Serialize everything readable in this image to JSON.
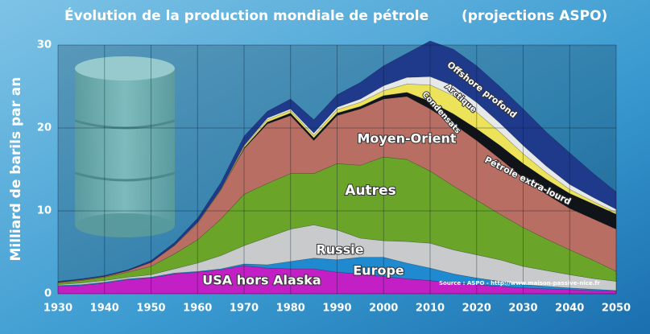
{
  "chart_data": {
    "type": "stacked-area",
    "title": "Évolution de la production mondiale de pétrole",
    "subtitle": "(projections ASPO)",
    "y_label": "Milliard de barils par an",
    "source": "Source : ASPO - http://www.maison-passive-nice.fr",
    "x": [
      1930,
      1935,
      1940,
      1945,
      1950,
      1955,
      1960,
      1965,
      1970,
      1975,
      1980,
      1985,
      1990,
      1995,
      2000,
      2005,
      2010,
      2015,
      2020,
      2025,
      2030,
      2035,
      2040,
      2045,
      2050
    ],
    "xlim": [
      1930,
      2050
    ],
    "xticks": [
      1930,
      1940,
      1950,
      1960,
      1970,
      1980,
      1990,
      2000,
      2010,
      2020,
      2030,
      2040,
      2050
    ],
    "ylim": [
      0,
      30
    ],
    "yticks": [
      0,
      10,
      20,
      30
    ],
    "grid": true,
    "series": [
      {
        "name": "USA hors Alaska",
        "color": "#c21fc4",
        "values": [
          0.9,
          1.0,
          1.3,
          1.7,
          1.9,
          2.4,
          2.6,
          2.9,
          3.4,
          3.1,
          3.0,
          3.0,
          2.6,
          2.4,
          2.1,
          1.8,
          1.6,
          1.3,
          1.1,
          0.9,
          0.7,
          0.6,
          0.5,
          0.4,
          0.3
        ]
      },
      {
        "name": "Europe",
        "color": "#1f8ad0",
        "values": [
          0.1,
          0.1,
          0.1,
          0.1,
          0.1,
          0.1,
          0.1,
          0.1,
          0.2,
          0.4,
          0.9,
          1.3,
          1.5,
          2.0,
          2.3,
          1.9,
          1.5,
          1.1,
          0.8,
          0.6,
          0.4,
          0.3,
          0.2,
          0.15,
          0.1
        ]
      },
      {
        "name": "Russie",
        "color": "#c8cacc",
        "values": [
          0.1,
          0.2,
          0.2,
          0.2,
          0.3,
          0.5,
          1.0,
          1.6,
          2.2,
          3.3,
          3.9,
          4.0,
          3.6,
          2.3,
          2.0,
          2.6,
          3.0,
          2.9,
          2.8,
          2.6,
          2.2,
          1.9,
          1.6,
          1.3,
          1.1
        ]
      },
      {
        "name": "Autres",
        "color": "#6aa52a",
        "values": [
          0.2,
          0.3,
          0.4,
          0.6,
          1.0,
          1.8,
          2.8,
          4.4,
          6.2,
          6.5,
          6.7,
          6.2,
          8.0,
          8.8,
          10.1,
          9.9,
          8.7,
          7.7,
          6.6,
          5.5,
          4.7,
          3.8,
          3.0,
          2.2,
          1.2
        ]
      },
      {
        "name": "Moyen-Orient",
        "color": "#b86e62",
        "values": [
          0.1,
          0.1,
          0.1,
          0.2,
          0.5,
          1.0,
          2.0,
          3.5,
          5.5,
          7.2,
          7.0,
          4.0,
          5.8,
          6.8,
          7.0,
          7.6,
          7.5,
          7.5,
          7.2,
          6.7,
          6.0,
          5.4,
          5.0,
          5.0,
          5.1
        ]
      },
      {
        "name": "Pétrole extra-lourd",
        "color": "#101418",
        "values": [
          0,
          0,
          0,
          0,
          0,
          0,
          0,
          0,
          0.1,
          0.2,
          0.3,
          0.3,
          0.3,
          0.3,
          0.4,
          0.5,
          0.9,
          1.2,
          1.4,
          1.6,
          1.7,
          1.8,
          1.8,
          1.8,
          1.8
        ]
      },
      {
        "name": "Condensats",
        "color": "#ece35a",
        "values": [
          0,
          0,
          0,
          0,
          0,
          0.05,
          0.1,
          0.1,
          0.2,
          0.3,
          0.3,
          0.3,
          0.4,
          0.5,
          0.6,
          1.0,
          2.0,
          2.2,
          2.0,
          1.6,
          1.2,
          0.8,
          0.5,
          0.3,
          0.2
        ]
      },
      {
        "name": "Arctique",
        "color": "#e6e8ea",
        "values": [
          0,
          0,
          0,
          0,
          0,
          0,
          0,
          0,
          0.1,
          0.2,
          0.2,
          0.3,
          0.3,
          0.4,
          0.6,
          0.8,
          1.0,
          1.2,
          1.2,
          1.1,
          1.0,
          0.8,
          0.6,
          0.5,
          0.4
        ]
      },
      {
        "name": "Offshore profond",
        "color": "#1f3a8a",
        "values": [
          0.1,
          0.1,
          0.1,
          0.1,
          0.2,
          0.3,
          0.5,
          0.8,
          1.1,
          0.8,
          1.2,
          1.6,
          1.5,
          2.0,
          2.4,
          2.9,
          4.3,
          4.4,
          4.4,
          4.4,
          4.4,
          4.1,
          3.8,
          2.9,
          2.1
        ]
      }
    ]
  }
}
